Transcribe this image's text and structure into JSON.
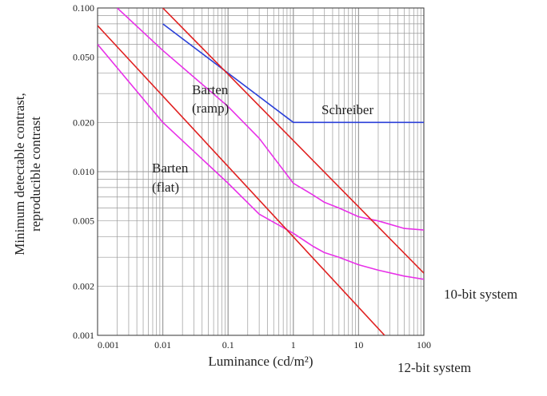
{
  "chart_data": {
    "type": "line",
    "xscale": "log",
    "yscale": "log",
    "xlim": [
      0.001,
      100
    ],
    "ylim": [
      0.001,
      0.1
    ],
    "grid": true,
    "xlabel": "Luminance (cd/m²)",
    "ylabel_lines": [
      "Minimum detectable contrast,",
      "reproducible contrast"
    ],
    "x_ticks": [
      {
        "value": 0.001,
        "label": "0.001"
      },
      {
        "value": 0.01,
        "label": "0.01"
      },
      {
        "value": 0.1,
        "label": "0.1"
      },
      {
        "value": 1,
        "label": "1"
      },
      {
        "value": 10,
        "label": "10"
      },
      {
        "value": 100,
        "label": "100"
      }
    ],
    "y_ticks": [
      {
        "value": 0.001,
        "label": "0.001"
      },
      {
        "value": 0.002,
        "label": "0.002"
      },
      {
        "value": 0.005,
        "label": "0.005"
      },
      {
        "value": 0.01,
        "label": "0.010"
      },
      {
        "value": 0.02,
        "label": "0.020"
      },
      {
        "value": 0.05,
        "label": "0.050"
      },
      {
        "value": 0.1,
        "label": "0.100"
      }
    ],
    "colors": {
      "grid": "#9a9a9a",
      "axis": "#333333",
      "red": "#e02020",
      "magenta": "#e830e8",
      "blue": "#2a3fd8"
    },
    "series": [
      {
        "id": "schreiber",
        "color": "blue",
        "x": [
          0.01,
          1,
          100
        ],
        "y": [
          0.08,
          0.02,
          0.02
        ]
      },
      {
        "id": "barten-ramp",
        "color": "magenta",
        "x": [
          0.002,
          0.01,
          0.1,
          0.3,
          1,
          2,
          3,
          5,
          10,
          20,
          50,
          100
        ],
        "y": [
          0.1,
          0.055,
          0.025,
          0.016,
          0.0085,
          0.0072,
          0.0065,
          0.006,
          0.0053,
          0.005,
          0.0045,
          0.0044
        ]
      },
      {
        "id": "barten-flat",
        "color": "magenta",
        "x": [
          0.001,
          0.01,
          0.1,
          0.3,
          1,
          2,
          3,
          5,
          10,
          20,
          50,
          100
        ],
        "y": [
          0.06,
          0.02,
          0.0085,
          0.0055,
          0.0042,
          0.0035,
          0.0032,
          0.003,
          0.0027,
          0.0025,
          0.0023,
          0.0022
        ]
      },
      {
        "id": "10-bit-system",
        "color": "red",
        "x": [
          0.01,
          100
        ],
        "y": [
          0.1,
          0.0024
        ]
      },
      {
        "id": "12-bit-system",
        "color": "red",
        "x": [
          0.001,
          25
        ],
        "y": [
          0.078,
          0.001
        ]
      }
    ],
    "annotations": [
      {
        "id": "barten-ramp",
        "lines": [
          "Barten",
          "(ramp)"
        ]
      },
      {
        "id": "schreiber",
        "lines": [
          "Schreiber"
        ]
      },
      {
        "id": "barten-flat",
        "lines": [
          "Barten",
          "(flat)"
        ]
      },
      {
        "id": "10-bit-system",
        "lines": [
          "10-bit system"
        ]
      },
      {
        "id": "12-bit-system",
        "lines": [
          "12-bit system"
        ]
      }
    ]
  }
}
